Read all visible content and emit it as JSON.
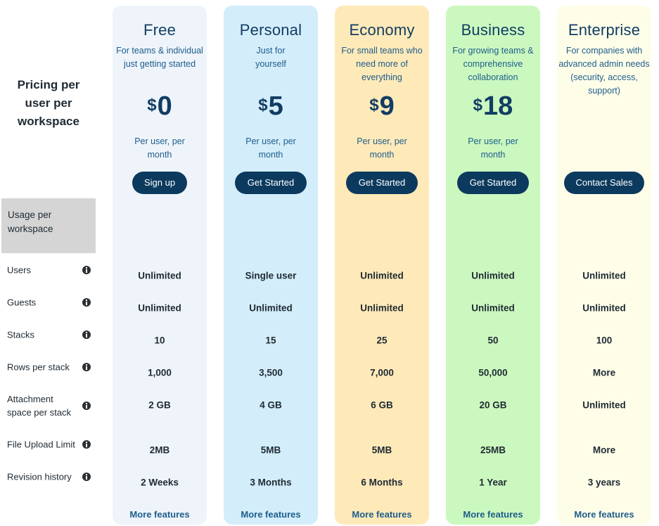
{
  "sidebar": {
    "heading": "Pricing per user per workspace",
    "usage_header": "Usage per workspace",
    "rows": [
      {
        "key": "users",
        "label": "Users"
      },
      {
        "key": "guests",
        "label": "Guests"
      },
      {
        "key": "stacks",
        "label": "Stacks"
      },
      {
        "key": "rows_per_stack",
        "label": "Rows per stack"
      },
      {
        "key": "attachment_space",
        "label": "Attachment space per stack"
      },
      {
        "key": "file_upload_limit",
        "label": "File Upload Limit"
      },
      {
        "key": "revision_history",
        "label": "Revision history"
      }
    ],
    "info_icon": "info-circle-icon"
  },
  "plans": [
    {
      "name": "Free",
      "description": "For teams & individual just getting started",
      "currency": "$",
      "price": "0",
      "per_unit": "Per user, per month",
      "cta": "Sign up",
      "bg_color": "#eef4fa",
      "values": [
        "Unlimited",
        "Unlimited",
        "10",
        "1,000",
        "2 GB",
        "2MB",
        "2 Weeks"
      ],
      "more": "More features"
    },
    {
      "name": "Personal",
      "description": "Just for yourself",
      "currency": "$",
      "price": "5",
      "per_unit": "Per user, per month",
      "cta": "Get Started",
      "bg_color": "#d3edfa",
      "values": [
        "Single user",
        "Unlimited",
        "15",
        "3,500",
        "4 GB",
        "5MB",
        "3 Months"
      ],
      "more": "More features"
    },
    {
      "name": "Economy",
      "description": "For small teams who need more of everything",
      "currency": "$",
      "price": "9",
      "per_unit": "Per user, per month",
      "cta": "Get Started",
      "bg_color": "#fee9b8",
      "values": [
        "Unlimited",
        "Unlimited",
        "25",
        "7,000",
        "6 GB",
        "5MB",
        "6 Months"
      ],
      "more": "More features"
    },
    {
      "name": "Business",
      "description": "For growing teams & comprehensive collaboration",
      "currency": "$",
      "price": "18",
      "per_unit": "Per user, per month",
      "cta": "Get Started",
      "bg_color": "#cbf8bf",
      "values": [
        "Unlimited",
        "Unlimited",
        "50",
        "50,000",
        "20 GB",
        "25MB",
        "1 Year"
      ],
      "more": "More features"
    },
    {
      "name": "Enterprise",
      "description": "For companies with advanced admin needs (security, access, support)",
      "currency": "",
      "price": "",
      "per_unit": "",
      "cta": "Contact Sales",
      "bg_color": "#fefde8",
      "values": [
        "Unlimited",
        "Unlimited",
        "100",
        "More",
        "Unlimited",
        "More",
        "3 years"
      ],
      "more": "More features"
    }
  ]
}
